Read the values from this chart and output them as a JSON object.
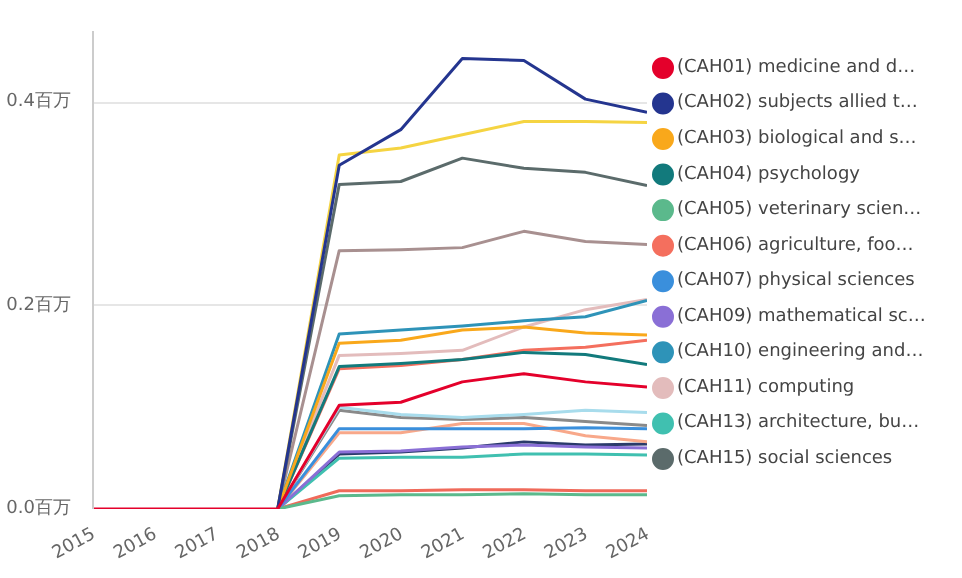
{
  "chart_data": {
    "type": "line",
    "x": [
      2015,
      2016,
      2017,
      2018,
      2019,
      2020,
      2021,
      2022,
      2023,
      2024
    ],
    "xlim": [
      2015,
      2024
    ],
    "xticks": [
      2015,
      2016,
      2017,
      2018,
      2019,
      2020,
      2021,
      2022,
      2023,
      2024
    ],
    "ylim": [
      0,
      0.47
    ],
    "yticks": [
      {
        "value": 0,
        "label": "0.0百万"
      },
      {
        "value": 0.2,
        "label": "0.2百万"
      },
      {
        "value": 0.4,
        "label": "0.4百万"
      }
    ],
    "grid": "y",
    "legend": "right",
    "line_style": "solid",
    "series": [
      {
        "name": "(CAH01) medicine and d…",
        "color": "#e4002b",
        "values": [
          0,
          0,
          0,
          0,
          0.102,
          0.105,
          0.125,
          0.133,
          0.125,
          0.12
        ]
      },
      {
        "name": "(CAH02) subjects allied t…",
        "color": "#24358f",
        "values": [
          null,
          null,
          null,
          0,
          0.338,
          0.373,
          0.443,
          0.441,
          0.403,
          0.39
        ]
      },
      {
        "name": "(CAH03) biological and s…",
        "color": "#f9a81b",
        "values": [
          null,
          null,
          null,
          0,
          0.163,
          0.166,
          0.176,
          0.179,
          0.173,
          0.171
        ]
      },
      {
        "name": "(CAH04) psychology",
        "color": "#127a7c",
        "values": [
          null,
          null,
          null,
          0,
          0.14,
          0.143,
          0.147,
          0.154,
          0.152,
          0.142
        ]
      },
      {
        "name": "(CAH05) veterinary scien…",
        "color": "#5bb98c",
        "values": [
          null,
          null,
          null,
          0,
          0.013,
          0.014,
          0.014,
          0.015,
          0.014,
          0.014
        ]
      },
      {
        "name": "(CAH06) agriculture, foo…",
        "color": "#f46f5e",
        "values": [
          null,
          null,
          null,
          0,
          0.138,
          0.141,
          0.147,
          0.156,
          0.159,
          0.166
        ]
      },
      {
        "name": "(CAH07) physical sciences",
        "color": "#3a8fdc",
        "values": [
          null,
          null,
          null,
          0,
          0.079,
          0.079,
          0.079,
          0.079,
          0.08,
          0.079
        ]
      },
      {
        "name": "(CAH09) mathematical sc…",
        "color": "#8a6fd6",
        "values": [
          null,
          null,
          null,
          0,
          0.056,
          0.057,
          0.061,
          0.063,
          0.061,
          0.06
        ]
      },
      {
        "name": "(CAH10) engineering and…",
        "color": "#2e93b8",
        "values": [
          null,
          null,
          null,
          0,
          0.172,
          0.176,
          0.18,
          0.185,
          0.189,
          0.205
        ]
      },
      {
        "name": "(CAH11) computing",
        "color": "#e3bcbc",
        "values": [
          null,
          null,
          null,
          0,
          0.151,
          0.153,
          0.156,
          0.179,
          0.196,
          0.206
        ]
      },
      {
        "name": "(CAH13) architecture, bu…",
        "color": "#40c0b0",
        "values": [
          null,
          null,
          null,
          0,
          0.05,
          0.051,
          0.051,
          0.054,
          0.054,
          0.053
        ]
      },
      {
        "name": "(CAH15) social sciences",
        "color": "#5b6b6b",
        "values": [
          null,
          null,
          null,
          0,
          0.319,
          0.322,
          0.345,
          0.335,
          0.331,
          0.318
        ]
      },
      {
        "color": "#f5d442",
        "values": [
          null,
          null,
          null,
          0,
          0.348,
          0.355,
          0.368,
          0.381,
          0.381,
          0.38
        ]
      },
      {
        "color": "#a89090",
        "values": [
          null,
          null,
          null,
          0,
          0.254,
          0.255,
          0.257,
          0.273,
          0.263,
          0.26
        ]
      },
      {
        "color": "#a8dcec",
        "values": [
          null,
          null,
          null,
          0,
          0.1,
          0.093,
          0.09,
          0.093,
          0.097,
          0.095
        ]
      },
      {
        "color": "#8a8a8a",
        "values": [
          null,
          null,
          null,
          0,
          0.097,
          0.09,
          0.088,
          0.09,
          0.086,
          0.082
        ]
      },
      {
        "color": "#f8a88a",
        "values": [
          null,
          null,
          null,
          0,
          0.075,
          0.075,
          0.084,
          0.084,
          0.072,
          0.066
        ]
      },
      {
        "color": "#2a3a6a",
        "values": [
          null,
          null,
          null,
          0,
          0.054,
          0.056,
          0.06,
          0.066,
          0.063,
          0.064
        ]
      },
      {
        "color": "#f06a5a",
        "values": [
          null,
          null,
          null,
          0,
          0.018,
          0.018,
          0.019,
          0.019,
          0.018,
          0.018
        ]
      }
    ]
  }
}
